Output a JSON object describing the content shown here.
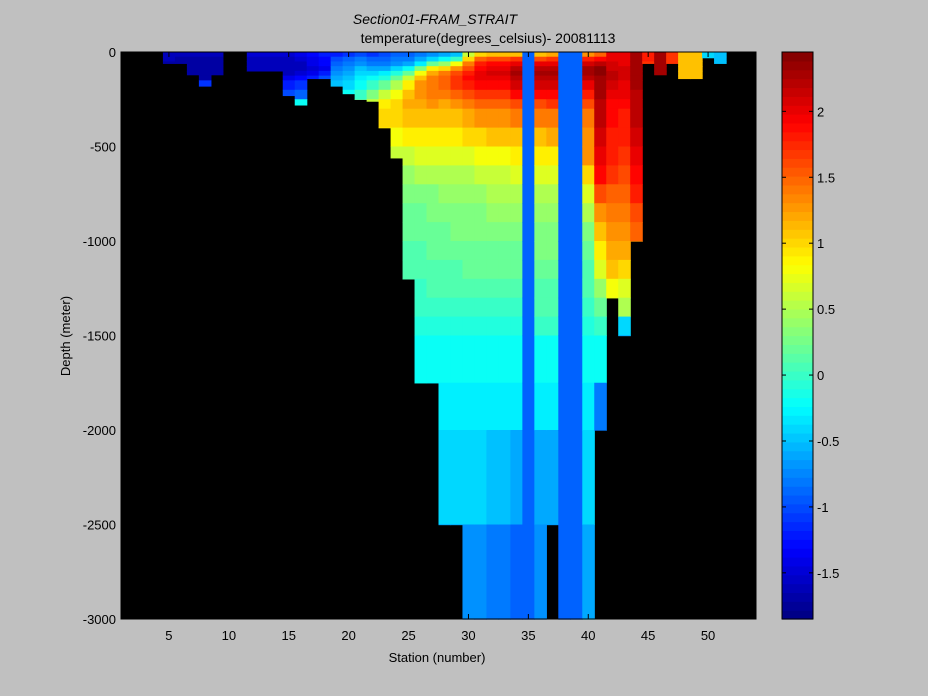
{
  "chart_data": {
    "type": "heatmap",
    "title": "Section01-FRAM_STRAIT",
    "subtitle": "temperature(degrees_celsius)- 20081113",
    "xlabel": "Station (number)",
    "ylabel": "Depth (meter)",
    "xlim": [
      1,
      54
    ],
    "ylim": [
      -3000,
      0
    ],
    "x_ticks": [
      5,
      10,
      15,
      20,
      25,
      30,
      35,
      40,
      45,
      50
    ],
    "y_ticks": [
      0,
      -500,
      -1000,
      -1500,
      -2000,
      -2500,
      -3000
    ],
    "colorbar": {
      "clim": [
        -1.85,
        2.45
      ],
      "ticks": [
        -1.5,
        -1,
        -0.5,
        0,
        0.5,
        1,
        1.5,
        2
      ]
    },
    "background_color": "#000000",
    "depth_levels": [
      0,
      -25,
      -50,
      -75,
      -100,
      -125,
      -150,
      -200,
      -250,
      -300,
      -400,
      -500,
      -600,
      -700,
      -800,
      -900,
      -1000,
      -1100,
      -1200,
      -1300,
      -1400,
      -1500,
      -1750,
      -2000,
      -2500,
      -3000
    ],
    "columns": [
      {
        "station": 5,
        "max_depth": -60,
        "values": [
          -1.6,
          -1.6,
          -1.7
        ]
      },
      {
        "station": 6,
        "max_depth": -60,
        "values": [
          -1.6,
          -1.7,
          -1.7
        ]
      },
      {
        "station": 7,
        "max_depth": -120,
        "values": [
          -1.6,
          -1.7,
          -1.7,
          -1.7,
          -1.7,
          -1.8
        ]
      },
      {
        "station": 8,
        "max_depth": -180,
        "values": [
          -1.6,
          -1.7,
          -1.7,
          -1.7,
          -1.7,
          -1.7,
          -1.1,
          -1.1
        ]
      },
      {
        "station": 9,
        "max_depth": -120,
        "values": [
          -1.6,
          -1.7,
          -1.7,
          -1.7,
          -1.7,
          -1.6
        ]
      },
      {
        "station": 12,
        "max_depth": -100,
        "values": [
          -1.5,
          -1.6,
          -1.6,
          -1.6,
          -1.6
        ]
      },
      {
        "station": 13,
        "max_depth": -100,
        "values": [
          -1.5,
          -1.6,
          -1.6,
          -1.6,
          -1.6
        ]
      },
      {
        "station": 14,
        "max_depth": -100,
        "values": [
          -1.5,
          -1.6,
          -1.6,
          -1.6,
          -1.6
        ]
      },
      {
        "station": 15,
        "max_depth": -230,
        "values": [
          -1.5,
          -1.6,
          -1.6,
          -1.6,
          -1.6,
          -1.4,
          -1.2,
          -1.0,
          -0.6
        ]
      },
      {
        "station": 16,
        "max_depth": -280,
        "values": [
          -1.4,
          -1.5,
          -1.6,
          -1.6,
          -1.5,
          -1.3,
          -1.1,
          -0.9,
          -0.2,
          0.1
        ]
      },
      {
        "station": 17,
        "max_depth": -140,
        "values": [
          -1.3,
          -1.4,
          -1.4,
          -1.5,
          -1.4,
          -1.2
        ]
      },
      {
        "station": 18,
        "max_depth": -140,
        "values": [
          -1.2,
          -1.3,
          -1.3,
          -1.4,
          -1.2,
          -1.0
        ]
      },
      {
        "station": 19,
        "max_depth": -180,
        "values": [
          -1.2,
          -1.0,
          -0.9,
          -0.8,
          -0.7,
          -0.6,
          -0.5,
          -0.4
        ]
      },
      {
        "station": 20,
        "max_depth": -220,
        "values": [
          -1.1,
          -0.9,
          -0.8,
          -0.7,
          -0.6,
          -0.5,
          -0.4,
          -0.2,
          0.0
        ]
      },
      {
        "station": 21,
        "max_depth": -250,
        "values": [
          -1.0,
          -0.8,
          -0.7,
          -0.5,
          -0.4,
          -0.3,
          -0.2,
          0.0,
          0.2
        ]
      },
      {
        "station": 22,
        "max_depth": -260,
        "values": [
          -1.1,
          -0.9,
          -0.8,
          -0.6,
          -0.4,
          -0.2,
          0.0,
          0.3,
          0.6
        ]
      },
      {
        "station": 23,
        "max_depth": -400,
        "values": [
          -1.0,
          -0.9,
          -0.8,
          -0.6,
          -0.3,
          -0.1,
          0.2,
          0.6,
          0.9,
          1.0,
          0.9
        ]
      },
      {
        "station": 24,
        "max_depth": -560,
        "values": [
          -0.9,
          -0.8,
          -0.7,
          -0.4,
          -0.1,
          0.2,
          0.5,
          0.8,
          1.0,
          1.0,
          0.8,
          0.6,
          0.3
        ]
      },
      {
        "station": 25,
        "max_depth": -1200,
        "values": [
          -0.9,
          -0.8,
          -0.6,
          -0.2,
          0.2,
          0.6,
          0.9,
          1.1,
          1.2,
          1.1,
          0.9,
          0.6,
          0.4,
          0.3,
          0.2,
          0.2,
          0.1,
          0.1,
          0.1
        ]
      },
      {
        "station": 26,
        "max_depth": -1750,
        "values": [
          -0.8,
          -0.6,
          -0.3,
          0.3,
          0.8,
          1.1,
          1.3,
          1.3,
          1.2,
          1.1,
          0.9,
          0.7,
          0.5,
          0.3,
          0.2,
          0.2,
          0.1,
          0.1,
          0.0,
          0.0,
          -0.1,
          -0.2,
          -0.2
        ]
      },
      {
        "station": 27,
        "max_depth": -1750,
        "values": [
          -0.7,
          -0.4,
          0.2,
          0.9,
          1.2,
          1.4,
          1.4,
          1.4,
          1.3,
          1.1,
          0.9,
          0.7,
          0.5,
          0.3,
          0.3,
          0.2,
          0.2,
          0.1,
          0.1,
          0.0,
          -0.1,
          -0.2,
          -0.3
        ]
      },
      {
        "station": 28,
        "max_depth": -2500,
        "values": [
          -0.6,
          -0.2,
          0.4,
          1.0,
          1.4,
          1.5,
          1.5,
          1.4,
          1.2,
          1.1,
          0.9,
          0.7,
          0.5,
          0.4,
          0.3,
          0.2,
          0.2,
          0.1,
          0.1,
          0.0,
          -0.1,
          -0.2,
          -0.3,
          -0.4,
          -0.7
        ]
      },
      {
        "station": 29,
        "max_depth": -2500,
        "values": [
          -0.5,
          0.0,
          0.8,
          1.3,
          1.6,
          1.7,
          1.7,
          1.5,
          1.3,
          1.1,
          0.9,
          0.7,
          0.5,
          0.4,
          0.3,
          0.3,
          0.2,
          0.1,
          0.1,
          0.0,
          -0.1,
          -0.2,
          -0.3,
          -0.4,
          -0.7
        ]
      },
      {
        "station": 30,
        "max_depth": -3000,
        "values": [
          0.6,
          1.0,
          1.4,
          1.6,
          1.8,
          1.9,
          1.8,
          1.6,
          1.4,
          1.2,
          1.0,
          0.7,
          0.5,
          0.4,
          0.3,
          0.3,
          0.2,
          0.2,
          0.1,
          0.0,
          -0.1,
          -0.2,
          -0.3,
          -0.4,
          -0.7,
          -0.8
        ]
      },
      {
        "station": 31,
        "max_depth": -3000,
        "values": [
          1.0,
          1.5,
          1.8,
          1.9,
          2.0,
          2.0,
          1.9,
          1.7,
          1.5,
          1.3,
          1.0,
          0.8,
          0.6,
          0.4,
          0.3,
          0.3,
          0.2,
          0.2,
          0.1,
          0.0,
          -0.1,
          -0.2,
          -0.3,
          -0.4,
          -0.7,
          -1.2
        ]
      },
      {
        "station": 32,
        "max_depth": -3000,
        "values": [
          1.1,
          1.6,
          1.9,
          2.0,
          2.1,
          2.0,
          1.9,
          1.7,
          1.5,
          1.3,
          1.1,
          0.8,
          0.6,
          0.5,
          0.4,
          0.3,
          0.2,
          0.2,
          0.1,
          0.0,
          -0.1,
          -0.2,
          -0.3,
          -0.5,
          -0.8,
          -0.8
        ]
      },
      {
        "station": 33,
        "max_depth": -3000,
        "values": [
          1.1,
          1.6,
          1.9,
          2.0,
          2.1,
          2.0,
          1.9,
          1.7,
          1.5,
          1.3,
          1.1,
          0.8,
          0.6,
          0.5,
          0.4,
          0.3,
          0.2,
          0.2,
          0.1,
          0.0,
          -0.1,
          -0.2,
          -0.3,
          -0.5,
          -0.8,
          -0.9
        ]
      },
      {
        "station": 34,
        "max_depth": -3000,
        "values": [
          1.1,
          1.7,
          2.0,
          2.2,
          2.3,
          2.2,
          2.1,
          1.9,
          1.6,
          1.4,
          1.1,
          0.9,
          0.7,
          0.5,
          0.4,
          0.3,
          0.2,
          0.2,
          0.1,
          0.0,
          -0.1,
          -0.2,
          -0.3,
          -0.6,
          -0.9,
          -0.9
        ]
      },
      {
        "station": 35,
        "max_depth": -3000,
        "values": [
          -0.9,
          -0.9,
          -0.9,
          -0.9,
          -0.9,
          -0.9,
          -0.9,
          -0.9,
          -0.9,
          -0.9,
          -0.9,
          -0.9,
          -0.9,
          -0.9,
          -0.9,
          -0.9,
          -0.9,
          -0.9,
          -0.9,
          -0.9,
          -0.9,
          -0.9,
          -0.9,
          -0.9,
          -0.9,
          -0.9
        ]
      },
      {
        "station": 36,
        "max_depth": -3000,
        "values": [
          1.1,
          1.6,
          2.0,
          2.2,
          2.3,
          2.2,
          2.1,
          1.9,
          1.6,
          1.4,
          1.1,
          0.9,
          0.7,
          0.5,
          0.4,
          0.3,
          0.3,
          0.2,
          0.1,
          0.1,
          0.0,
          -0.2,
          -0.3,
          -0.6,
          -0.7,
          -0.8
        ]
      },
      {
        "station": 37,
        "max_depth": -2500,
        "values": [
          1.2,
          1.7,
          2.0,
          2.2,
          2.3,
          2.2,
          2.1,
          1.9,
          1.7,
          1.4,
          1.2,
          0.9,
          0.7,
          0.5,
          0.4,
          0.3,
          0.3,
          0.2,
          0.1,
          0.1,
          0.0,
          -0.2,
          -0.3,
          -0.6,
          -0.7
        ]
      },
      {
        "station": 38,
        "max_depth": -3000,
        "values": [
          -0.9,
          -0.9,
          -0.9,
          -0.9,
          -0.9,
          -0.9,
          -0.9,
          -0.9,
          -0.9,
          -0.9,
          -0.9,
          -0.9,
          -0.9,
          -0.9,
          -0.9,
          -0.9,
          -0.9,
          -0.9,
          -0.9,
          -0.9,
          -0.9,
          -0.9,
          -0.9,
          -0.9,
          -0.9,
          -0.9
        ]
      },
      {
        "station": 39,
        "max_depth": -3000,
        "values": [
          -0.9,
          -0.9,
          -0.9,
          -0.9,
          -0.9,
          -0.9,
          -0.9,
          -0.9,
          -0.9,
          -0.9,
          -0.9,
          -0.9,
          -0.9,
          -0.9,
          -0.9,
          -0.9,
          -0.9,
          -0.9,
          -0.9,
          -0.9,
          -0.9,
          -0.9,
          -0.9,
          -0.9,
          -0.9,
          -0.9
        ]
      },
      {
        "station": 40,
        "max_depth": -3000,
        "values": [
          1.3,
          1.8,
          2.1,
          2.3,
          2.3,
          2.2,
          2.0,
          1.8,
          1.6,
          1.4,
          1.3,
          1.3,
          1.0,
          0.7,
          0.5,
          0.3,
          0.2,
          0.1,
          0.1,
          0.0,
          -0.1,
          -0.2,
          -0.3,
          -0.4,
          -0.6,
          -0.2
        ]
      },
      {
        "station": 41,
        "max_depth": -2000,
        "values": [
          1.5,
          1.9,
          2.2,
          2.4,
          2.4,
          2.3,
          2.3,
          2.3,
          2.2,
          2.2,
          2.1,
          2.0,
          1.9,
          1.6,
          1.3,
          1.1,
          0.9,
          0.7,
          0.4,
          0.2,
          0.0,
          -0.2,
          -0.8,
          -0.8
        ]
      },
      {
        "station": 42,
        "max_depth": -1300,
        "values": [
          2.0,
          2.0,
          2.1,
          2.1,
          2.2,
          2.2,
          2.1,
          2.0,
          1.9,
          1.9,
          1.8,
          1.8,
          1.7,
          1.5,
          1.4,
          1.3,
          1.2,
          1.1,
          0.8,
          0.7
        ]
      },
      {
        "station": 43,
        "max_depth": -1500,
        "values": [
          2.0,
          2.0,
          2.0,
          2.1,
          2.1,
          2.1,
          2.0,
          2.0,
          1.9,
          1.8,
          1.8,
          1.7,
          1.6,
          1.5,
          1.4,
          1.3,
          1.2,
          1.0,
          0.7,
          0.5,
          -0.4,
          -0.7
        ]
      },
      {
        "station": 44,
        "max_depth": -1000,
        "values": [
          2.3,
          2.3,
          2.3,
          2.3,
          2.3,
          2.3,
          2.3,
          2.2,
          2.2,
          2.2,
          2.1,
          2.0,
          1.9,
          1.8,
          1.6,
          1.5,
          1.3
        ]
      },
      {
        "station": 45,
        "max_depth": -60,
        "values": [
          1.8,
          1.8,
          1.7
        ]
      },
      {
        "station": 46,
        "max_depth": -120,
        "values": [
          2.3,
          2.3,
          2.3,
          2.3,
          2.3,
          2.3
        ]
      },
      {
        "station": 47,
        "max_depth": -60,
        "values": [
          1.7,
          1.7,
          1.7
        ]
      },
      {
        "station": 48,
        "max_depth": -140,
        "values": [
          1.1,
          1.1,
          1.1,
          1.1,
          1.1,
          1.1
        ]
      },
      {
        "station": 49,
        "max_depth": -140,
        "values": [
          1.1,
          1.1,
          1.1,
          1.1,
          1.1,
          1.1
        ]
      },
      {
        "station": 50,
        "max_depth": -30,
        "values": [
          -0.4,
          -0.4
        ]
      },
      {
        "station": 51,
        "max_depth": -60,
        "values": [
          -0.5,
          -0.5,
          -0.5
        ]
      }
    ]
  }
}
